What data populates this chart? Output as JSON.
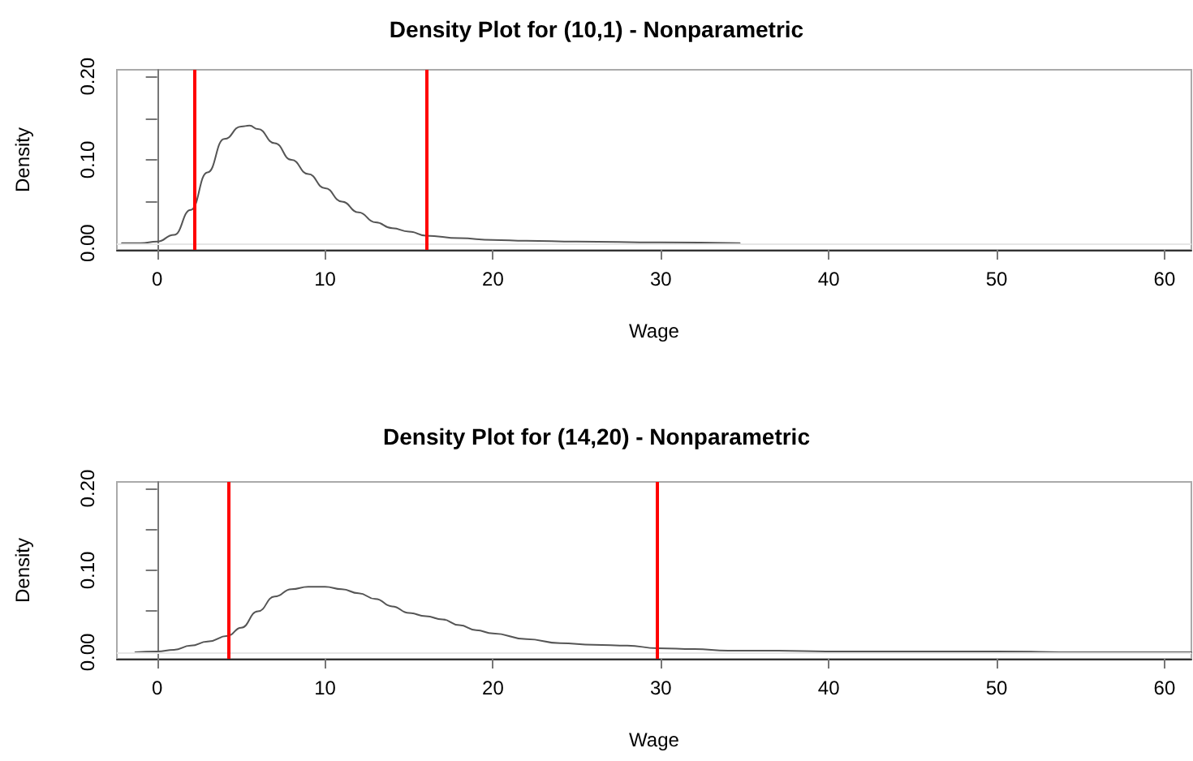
{
  "chart_data": [
    {
      "type": "line",
      "title": "Density Plot for (10,1) - Nonparametric",
      "xlabel": "Wage",
      "ylabel": "Density",
      "x": [
        -2.1,
        -1,
        0,
        1,
        2,
        3,
        4,
        5,
        5.5,
        6,
        7,
        8,
        9,
        10,
        11,
        12,
        13,
        14,
        15,
        16,
        18,
        20,
        22,
        25,
        30,
        34.7
      ],
      "series": [
        {
          "color": "#555555",
          "values": [
            0,
            0,
            0.002,
            0.01,
            0.04,
            0.085,
            0.125,
            0.14,
            0.141,
            0.137,
            0.12,
            0.1,
            0.083,
            0.066,
            0.05,
            0.037,
            0.025,
            0.018,
            0.014,
            0.009,
            0.006,
            0.004,
            0.003,
            0.002,
            0.001,
            0
          ]
        }
      ],
      "xlim": [
        -2.4,
        61.6
      ],
      "xticks": [
        0,
        10,
        20,
        30,
        40,
        50,
        60
      ],
      "ylim": [
        -0.008,
        0.208
      ],
      "yticks": [
        {
          "value": 0,
          "label": "0.00"
        },
        {
          "value": 0.05,
          "label": null
        },
        {
          "value": 0.1,
          "label": "0.10"
        },
        {
          "value": 0.15,
          "label": null
        },
        {
          "value": 0.2,
          "label": "0.20"
        }
      ],
      "ref_lines": [
        {
          "axis": "y",
          "value": 0,
          "label": null,
          "color": "#e6e6e6"
        },
        {
          "axis": "x",
          "value": 2.2,
          "label": null,
          "color": "#ff0000"
        },
        {
          "axis": "x",
          "value": 16,
          "label": null,
          "color": "#ff0000"
        }
      ],
      "grid": false,
      "marker": "none",
      "line_style": "solid"
    },
    {
      "type": "line",
      "title": "Density Plot for (14,20) - Nonparametric",
      "xlabel": "Wage",
      "ylabel": "Density",
      "x": [
        -1.3,
        0,
        1,
        2,
        3,
        4.2,
        5,
        6,
        7,
        8,
        9,
        10,
        11,
        12,
        13,
        14,
        15,
        16,
        17,
        18,
        19,
        20,
        22,
        24,
        26,
        28,
        29.8,
        32,
        34,
        37,
        40,
        45,
        50,
        55,
        61.6
      ],
      "series": [
        {
          "color": "#555555",
          "values": [
            0,
            0.001,
            0.003,
            0.008,
            0.013,
            0.02,
            0.03,
            0.05,
            0.068,
            0.077,
            0.08,
            0.08,
            0.077,
            0.072,
            0.065,
            0.056,
            0.048,
            0.044,
            0.04,
            0.033,
            0.027,
            0.023,
            0.016,
            0.011,
            0.009,
            0.008,
            0.005,
            0.004,
            0.002,
            0.002,
            0.001,
            0.001,
            0.001,
            0,
            0
          ]
        }
      ],
      "xlim": [
        -2.4,
        61.6
      ],
      "xticks": [
        0,
        10,
        20,
        30,
        40,
        50,
        60
      ],
      "ylim": [
        -0.008,
        0.208
      ],
      "yticks": [
        {
          "value": 0,
          "label": "0.00"
        },
        {
          "value": 0.05,
          "label": null
        },
        {
          "value": 0.1,
          "label": "0.10"
        },
        {
          "value": 0.15,
          "label": null
        },
        {
          "value": 0.2,
          "label": "0.20"
        }
      ],
      "ref_lines": [
        {
          "axis": "y",
          "value": 0,
          "label": null,
          "color": "#e6e6e6"
        },
        {
          "axis": "x",
          "value": 4.2,
          "label": null,
          "color": "#ff0000"
        },
        {
          "axis": "x",
          "value": 29.8,
          "label": null,
          "color": "#ff0000"
        }
      ],
      "grid": false,
      "marker": "none",
      "line_style": "solid"
    }
  ]
}
